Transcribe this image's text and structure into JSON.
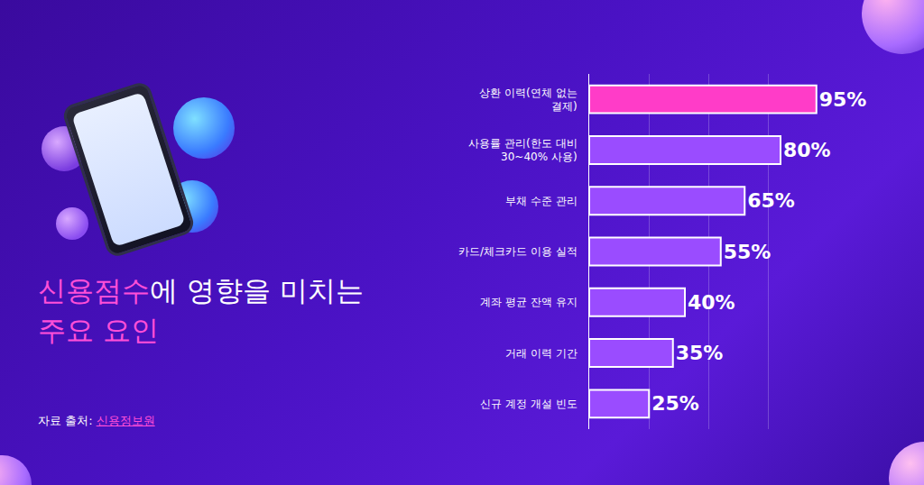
{
  "chart_data": {
    "type": "bar",
    "orientation": "horizontal",
    "title": "신용점수에 영향을 미치는 주요 요인",
    "title_highlight": [
      "신용점수",
      "주요 요인"
    ],
    "source_label": "자료 출처:",
    "source": "신용정보원",
    "categories": [
      "상환 이력(연체 없는 결제)",
      "사용률 관리(한도 대비 30~40% 사용)",
      "부채 수준 관리",
      "카드/체크카드 이용 실적",
      "계좌 평균 잔액 유지",
      "거래 이력 기간",
      "신규 계정 개설 빈도"
    ],
    "values": [
      95,
      80,
      65,
      55,
      40,
      35,
      25
    ],
    "value_labels": [
      "95%",
      "80%",
      "65%",
      "55%",
      "40%",
      "35%",
      "25%"
    ],
    "colors": [
      "#ff3cc8",
      "#9a4cff",
      "#9a4cff",
      "#9a4cff",
      "#9a4cff",
      "#9a4cff",
      "#9a4cff"
    ],
    "xlim": [
      0,
      100
    ],
    "xticks": [
      0,
      25,
      50,
      75,
      100
    ],
    "grid": true,
    "data_labels": true,
    "tick_labels": "y"
  }
}
